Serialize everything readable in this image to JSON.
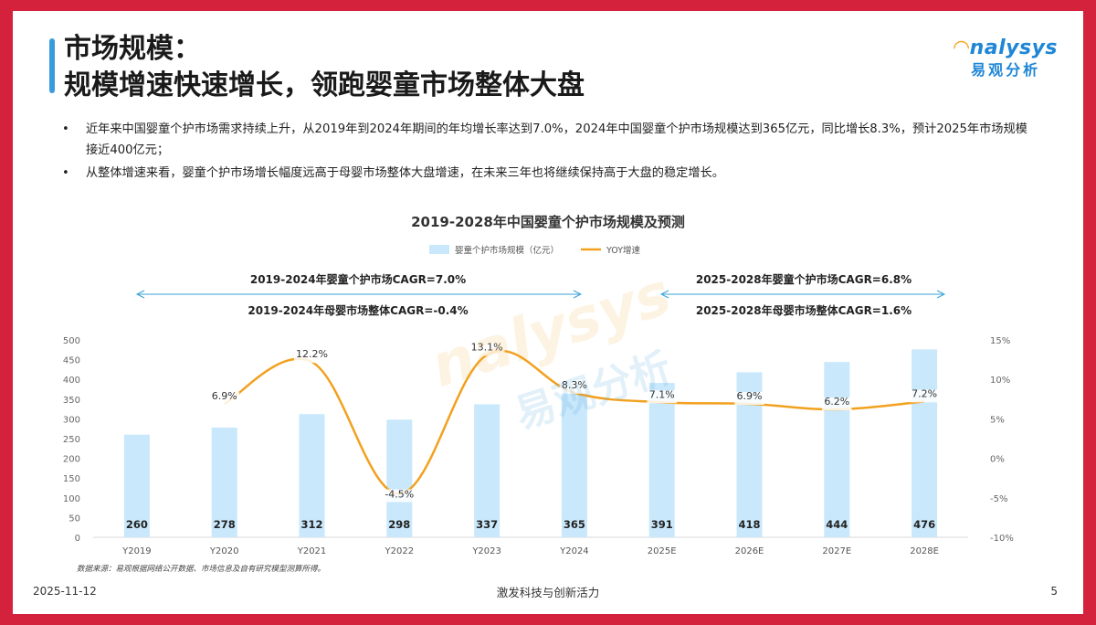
{
  "title": {
    "line1": "市场规模：",
    "line2": "规模增速快速增长，领跑婴童市场整体大盘"
  },
  "logo": {
    "brand": "nalysys",
    "sub": "易观分析",
    "accent": "#f4a11d",
    "main": "#1f86d6"
  },
  "bullets": [
    "近年来中国婴童个护市场需求持续上升，从2019年到2024年期间的年均增长率达到7.0%，2024年中国婴童个护市场规模达到365亿元，同比增长8.3%，预计2025年市场规模接近400亿元；",
    "从整体增速来看，婴童个护市场增长幅度远高于母婴市场整体大盘增速，在未来三年也将继续保持高于大盘的稳定增长。"
  ],
  "chart_data": {
    "type": "bar",
    "title": "2019-2028年中国婴童个护市场规模及预测",
    "categories": [
      "Y2019",
      "Y2020",
      "Y2021",
      "Y2022",
      "Y2023",
      "Y2024",
      "2025E",
      "2026E",
      "2027E",
      "2028E"
    ],
    "series": [
      {
        "name": "婴童个护市场规模（亿元）",
        "type": "bar",
        "axis": "left",
        "color": "#c9e8fb",
        "values": [
          260,
          278,
          312,
          298,
          337,
          365,
          391,
          418,
          444,
          476
        ],
        "labels": [
          "260",
          "278",
          "312",
          "298",
          "337",
          "365",
          "391",
          "418",
          "444",
          "476"
        ]
      },
      {
        "name": "YOY增速",
        "type": "line",
        "axis": "right",
        "color": "#f2a11f",
        "values": [
          null,
          6.9,
          12.2,
          -4.5,
          13.1,
          8.3,
          7.1,
          6.9,
          6.2,
          7.2
        ],
        "labels": [
          "",
          "6.9%",
          "12.2%",
          "-4.5%",
          "13.1%",
          "8.3%",
          "7.1%",
          "6.9%",
          "6.2%",
          "7.2%"
        ]
      }
    ],
    "y_left": {
      "min": 0,
      "max": 500,
      "ticks": [
        "0",
        "50",
        "100",
        "150",
        "200",
        "250",
        "300",
        "350",
        "400",
        "450",
        "500"
      ]
    },
    "y_right": {
      "min": -10,
      "max": 15,
      "ticks": [
        "-10%",
        "-5%",
        "0%",
        "5%",
        "10%",
        "15%"
      ]
    },
    "legend_position": "top-center",
    "annotations": [
      {
        "text": "2019-2024年婴童个护市场CAGR=7.0%",
        "from": 0,
        "to": 5
      },
      {
        "text": "2019-2024年母婴市场整体CAGR=-0.4%",
        "from": 0,
        "to": 5
      },
      {
        "text": "2025-2028年婴童个护市场CAGR=6.8%",
        "from": 6,
        "to": 9
      },
      {
        "text": "2025-2028年母婴市场整体CAGR=1.6%",
        "from": 6,
        "to": 9
      }
    ],
    "arrow_color": "#3aa2d6",
    "watermark": {
      "brand": "nalysys",
      "sub": "易观分析"
    }
  },
  "source": "数据来源：易观根据网络公开数据、市场信息及自有研究模型测算所得。",
  "footer": {
    "date": "2025-11-12",
    "slogan": "激发科技与创新活力",
    "page": "5"
  }
}
